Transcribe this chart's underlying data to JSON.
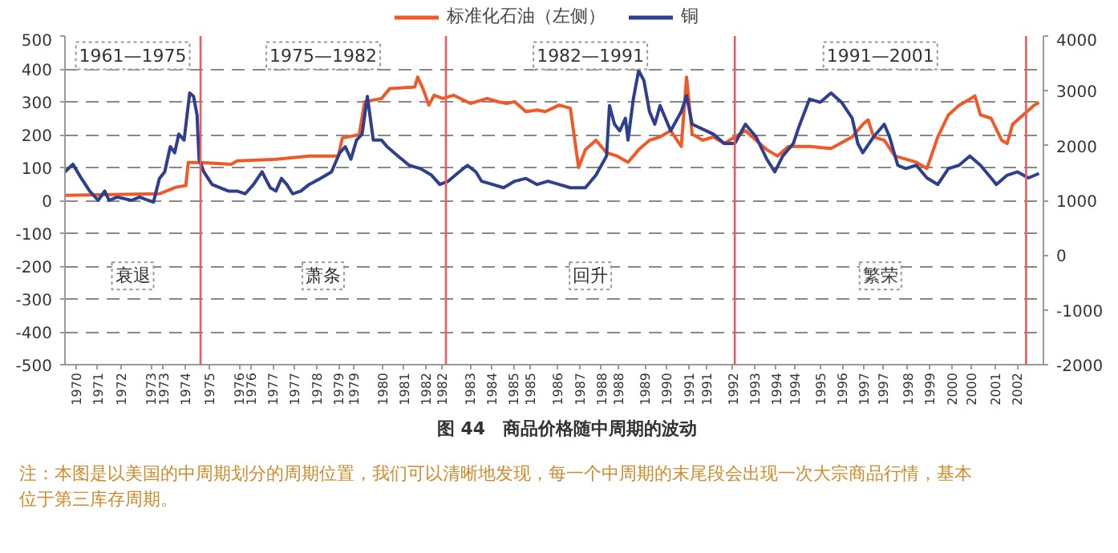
{
  "chart_data": {
    "type": "line",
    "title": "图 44　商品价格随中周期的波动",
    "xlim": [
      1969.63,
      2002.89
    ],
    "xticks": [
      {
        "value": 1970.0,
        "label": "1970"
      },
      {
        "value": 1970.74,
        "label": "1971"
      },
      {
        "value": 1971.55,
        "label": "1972"
      },
      {
        "value": 1972.55,
        "label": "1973"
      },
      {
        "value": 1972.98,
        "label": "1973"
      },
      {
        "value": 1973.72,
        "label": "1974"
      },
      {
        "value": 1974.55,
        "label": "1975"
      },
      {
        "value": 1975.55,
        "label": "1976"
      },
      {
        "value": 1975.95,
        "label": "1976"
      },
      {
        "value": 1976.7,
        "label": "1977"
      },
      {
        "value": 1977.44,
        "label": "1977"
      },
      {
        "value": 1978.19,
        "label": "1978"
      },
      {
        "value": 1978.93,
        "label": "1979"
      },
      {
        "value": 1979.45,
        "label": "1979"
      },
      {
        "value": 1980.42,
        "label": "1980"
      },
      {
        "value": 1981.16,
        "label": "1981"
      },
      {
        "value": 1981.91,
        "label": "1982"
      },
      {
        "value": 1982.45,
        "label": "1982"
      },
      {
        "value": 1983.4,
        "label": "1983"
      },
      {
        "value": 1984.14,
        "label": "1984"
      },
      {
        "value": 1984.88,
        "label": "1985"
      },
      {
        "value": 1985.45,
        "label": "1985"
      },
      {
        "value": 1986.37,
        "label": "1986"
      },
      {
        "value": 1987.12,
        "label": "1987"
      },
      {
        "value": 1987.86,
        "label": "1988"
      },
      {
        "value": 1988.45,
        "label": "1988"
      },
      {
        "value": 1989.35,
        "label": "1989"
      },
      {
        "value": 1990.09,
        "label": "1990"
      },
      {
        "value": 1990.84,
        "label": "1991"
      },
      {
        "value": 1991.45,
        "label": "1991"
      },
      {
        "value": 1992.33,
        "label": "1992"
      },
      {
        "value": 1993.07,
        "label": "1993"
      },
      {
        "value": 1993.81,
        "label": "1994"
      },
      {
        "value": 1994.45,
        "label": "1994"
      },
      {
        "value": 1995.3,
        "label": "1995"
      },
      {
        "value": 1996.05,
        "label": "1996"
      },
      {
        "value": 1996.79,
        "label": "1997"
      },
      {
        "value": 1997.45,
        "label": "1997"
      },
      {
        "value": 1998.28,
        "label": "1998"
      },
      {
        "value": 1999.02,
        "label": "1999"
      },
      {
        "value": 1999.77,
        "label": "2000"
      },
      {
        "value": 2000.45,
        "label": "2000"
      },
      {
        "value": 2001.26,
        "label": "2001"
      },
      {
        "value": 2002.0,
        "label": "2002"
      }
    ],
    "ylim": [
      -500,
      500
    ],
    "yticks": [
      -500,
      -400,
      -300,
      -200,
      -100,
      0,
      100,
      200,
      300,
      400,
      500
    ],
    "y2lim": [
      -2000,
      4000
    ],
    "y2ticks": [
      -2000,
      -1000,
      0,
      1000,
      2000,
      3000,
      4000
    ],
    "grid": "y",
    "legend": "top",
    "line_style": "solid",
    "series": [
      {
        "name": "标准化石油（左侧）",
        "color": "#f05a28",
        "x": [
          1969.63,
          1972.84,
          1973.4,
          1973.74,
          1973.82,
          1974.25,
          1975.29,
          1975.48,
          1976.8,
          1977.93,
          1978.92,
          1979.06,
          1979.63,
          1979.82,
          1980.39,
          1980.67,
          1981.52,
          1981.62,
          1981.8,
          1982.0,
          1982.18,
          1982.47,
          1982.84,
          1983.41,
          1983.98,
          1984.36,
          1984.64,
          1984.92,
          1985.3,
          1985.68,
          1985.96,
          1986.43,
          1986.81,
          1987.09,
          1987.32,
          1987.68,
          1988.04,
          1988.4,
          1988.77,
          1989.13,
          1989.5,
          1989.86,
          1990.22,
          1990.58,
          1990.76,
          1990.95,
          1991.31,
          1991.67,
          1992.04,
          1992.4,
          1992.76,
          1993.12,
          1993.49,
          1993.85,
          1994.22,
          1994.94,
          1995.67,
          1996.39,
          1996.75,
          1996.93,
          1997.12,
          1997.48,
          1997.84,
          1998.57,
          1998.93,
          1999.3,
          1999.66,
          2000.02,
          2000.39,
          2000.56,
          2000.75,
          2001.11,
          2001.47,
          2001.66,
          2001.84,
          2002.2,
          2002.57,
          2002.74
        ],
        "values": [
          15,
          20,
          40,
          45,
          115,
          115,
          110,
          120,
          125,
          135,
          135,
          190,
          200,
          300,
          310,
          340,
          345,
          375,
          340,
          290,
          320,
          310,
          320,
          295,
          310,
          300,
          295,
          300,
          270,
          275,
          270,
          290,
          280,
          100,
          154,
          183,
          145,
          135,
          116,
          154,
          183,
          193,
          212,
          164,
          375,
          202,
          183,
          193,
          173,
          193,
          212,
          183,
          154,
          135,
          164,
          164,
          158,
          193,
          231,
          245,
          193,
          183,
          135,
          116,
          97,
          193,
          260,
          289,
          308,
          318,
          260,
          250,
          183,
          173,
          231,
          260,
          289,
          298
        ]
      },
      {
        "name": "铜",
        "color": "#2e3f8f",
        "axis": "y2",
        "x": [
          1969.63,
          1969.9,
          1970.19,
          1970.47,
          1970.76,
          1970.98,
          1971.13,
          1971.41,
          1971.89,
          1972.17,
          1972.46,
          1972.64,
          1972.84,
          1973.02,
          1973.21,
          1973.36,
          1973.5,
          1973.68,
          1973.87,
          1974.0,
          1974.12,
          1974.19,
          1974.35,
          1974.63,
          1974.91,
          1975.19,
          1975.48,
          1975.76,
          1976.04,
          1976.33,
          1976.61,
          1976.8,
          1976.99,
          1977.17,
          1977.37,
          1977.65,
          1977.93,
          1978.31,
          1978.69,
          1978.97,
          1979.16,
          1979.35,
          1979.54,
          1979.73,
          1979.91,
          1980.11,
          1980.39,
          1980.58,
          1980.95,
          1981.33,
          1981.71,
          1982.09,
          1982.37,
          1982.66,
          1983.03,
          1983.31,
          1983.6,
          1983.79,
          1984.17,
          1984.54,
          1984.92,
          1985.3,
          1985.68,
          1986.05,
          1986.43,
          1986.81,
          1987.32,
          1987.68,
          1988.04,
          1988.14,
          1988.31,
          1988.49,
          1988.68,
          1988.77,
          1988.95,
          1989.13,
          1989.31,
          1989.5,
          1989.68,
          1989.86,
          1990.22,
          1990.58,
          1990.76,
          1990.95,
          1991.67,
          1992.04,
          1992.4,
          1992.76,
          1993.12,
          1993.49,
          1993.76,
          1994.03,
          1994.39,
          1994.57,
          1994.94,
          1995.3,
          1995.67,
          1996.03,
          1996.39,
          1996.58,
          1996.75,
          1997.12,
          1997.48,
          1997.66,
          1997.94,
          1998.21,
          1998.57,
          1998.93,
          1999.3,
          1999.66,
          2000.02,
          2000.39,
          2000.75,
          2001.11,
          2001.29,
          2001.66,
          2002.01,
          2002.38,
          2002.74
        ],
        "values": [
          1520,
          1660,
          1400,
          1170,
          1000,
          1170,
          1000,
          1060,
          1000,
          1060,
          1000,
          970,
          1400,
          1520,
          1980,
          1870,
          2210,
          2100,
          2960,
          2900,
          2560,
          1750,
          1520,
          1290,
          1230,
          1170,
          1170,
          1120,
          1290,
          1520,
          1230,
          1170,
          1400,
          1290,
          1120,
          1170,
          1290,
          1400,
          1520,
          1870,
          1980,
          1750,
          2100,
          2210,
          2900,
          2100,
          2100,
          1980,
          1810,
          1640,
          1580,
          1460,
          1290,
          1350,
          1520,
          1640,
          1520,
          1350,
          1290,
          1230,
          1350,
          1400,
          1290,
          1350,
          1290,
          1230,
          1230,
          1460,
          1810,
          2730,
          2390,
          2270,
          2500,
          2100,
          2850,
          3370,
          3190,
          2620,
          2390,
          2730,
          2270,
          2620,
          2910,
          2390,
          2210,
          2040,
          2040,
          2390,
          2160,
          1750,
          1520,
          1810,
          2040,
          2330,
          2850,
          2790,
          2960,
          2790,
          2500,
          2040,
          1870,
          2160,
          2390,
          2160,
          1640,
          1580,
          1640,
          1410,
          1290,
          1580,
          1640,
          1810,
          1640,
          1410,
          1290,
          1460,
          1520,
          1410,
          1490
        ]
      }
    ],
    "ref_lines": [
      {
        "axis": "x",
        "value": 1974.24,
        "color": "#f05a5a"
      },
      {
        "axis": "x",
        "value": 1982.58,
        "color": "#f05a5a"
      },
      {
        "axis": "x",
        "value": 1992.4,
        "color": "#f05a5a"
      },
      {
        "axis": "x",
        "value": 2002.3,
        "color": "#f05a5a"
      }
    ],
    "annotations": [
      "1961—1975",
      "1975—1982",
      "1982—1991",
      "1991—2001",
      "衰退",
      "萧条",
      "回升",
      "繁荣",
      "注：本图是以美国的中周期划分的周期位置，我们可以清晰地发现，每一个中周期的末尾段会出现一次大宗商品行情，基本位于第三库存周期。"
    ]
  }
}
